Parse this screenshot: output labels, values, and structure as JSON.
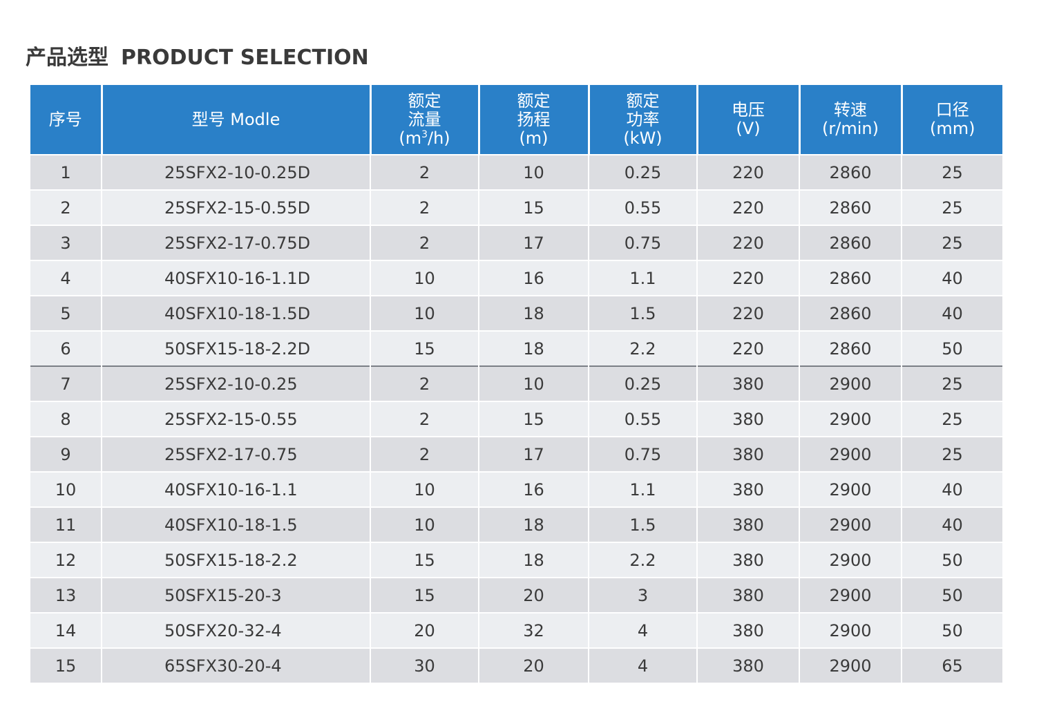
{
  "title": {
    "zh": "产品选型",
    "en": "PRODUCT SELECTION"
  },
  "table": {
    "headers": {
      "no": "序号",
      "model": "型号 Modle",
      "flow_l1": "额定",
      "flow_l2": "流量",
      "flow_unit_pre": "(m",
      "flow_unit_sup": "3",
      "flow_unit_post": "/h)",
      "head_l1": "额定",
      "head_l2": "扬程",
      "head_l3": "(m)",
      "power_l1": "额定",
      "power_l2": "功率",
      "power_l3": "(kW)",
      "voltage_l1": "电压",
      "voltage_l2": "(V)",
      "speed_l1": "转速",
      "speed_l2": "(r/min)",
      "caliber_l1": "口径",
      "caliber_l2": "(mm)"
    },
    "rows": [
      [
        "1",
        "25SFX2-10-0.25D",
        "2",
        "10",
        "0.25",
        "220",
        "2860",
        "25"
      ],
      [
        "2",
        "25SFX2-15-0.55D",
        "2",
        "15",
        "0.55",
        "220",
        "2860",
        "25"
      ],
      [
        "3",
        "25SFX2-17-0.75D",
        "2",
        "17",
        "0.75",
        "220",
        "2860",
        "25"
      ],
      [
        "4",
        "40SFX10-16-1.1D",
        "10",
        "16",
        "1.1",
        "220",
        "2860",
        "40"
      ],
      [
        "5",
        "40SFX10-18-1.5D",
        "10",
        "18",
        "1.5",
        "220",
        "2860",
        "40"
      ],
      [
        "6",
        "50SFX15-18-2.2D",
        "15",
        "18",
        "2.2",
        "220",
        "2860",
        "50"
      ],
      [
        "7",
        "25SFX2-10-0.25",
        "2",
        "10",
        "0.25",
        "380",
        "2900",
        "25"
      ],
      [
        "8",
        "25SFX2-15-0.55",
        "2",
        "15",
        "0.55",
        "380",
        "2900",
        "25"
      ],
      [
        "9",
        "25SFX2-17-0.75",
        "2",
        "17",
        "0.75",
        "380",
        "2900",
        "25"
      ],
      [
        "10",
        "40SFX10-16-1.1",
        "10",
        "16",
        "1.1",
        "380",
        "2900",
        "40"
      ],
      [
        "11",
        "40SFX10-18-1.5",
        "10",
        "18",
        "1.5",
        "380",
        "2900",
        "40"
      ],
      [
        "12",
        "50SFX15-18-2.2",
        "15",
        "18",
        "2.2",
        "380",
        "2900",
        "50"
      ],
      [
        "13",
        "50SFX15-20-3",
        "15",
        "20",
        "3",
        "380",
        "2900",
        "50"
      ],
      [
        "14",
        "50SFX20-32-4",
        "20",
        "32",
        "4",
        "380",
        "2900",
        "50"
      ],
      [
        "15",
        "65SFX30-20-4",
        "30",
        "20",
        "4",
        "380",
        "2900",
        "65"
      ]
    ]
  },
  "colors": {
    "header_bg": "#2a80c8",
    "row_dark": "#dcdde1",
    "row_light": "#eceef1",
    "group_divider": "#7b7f86"
  }
}
